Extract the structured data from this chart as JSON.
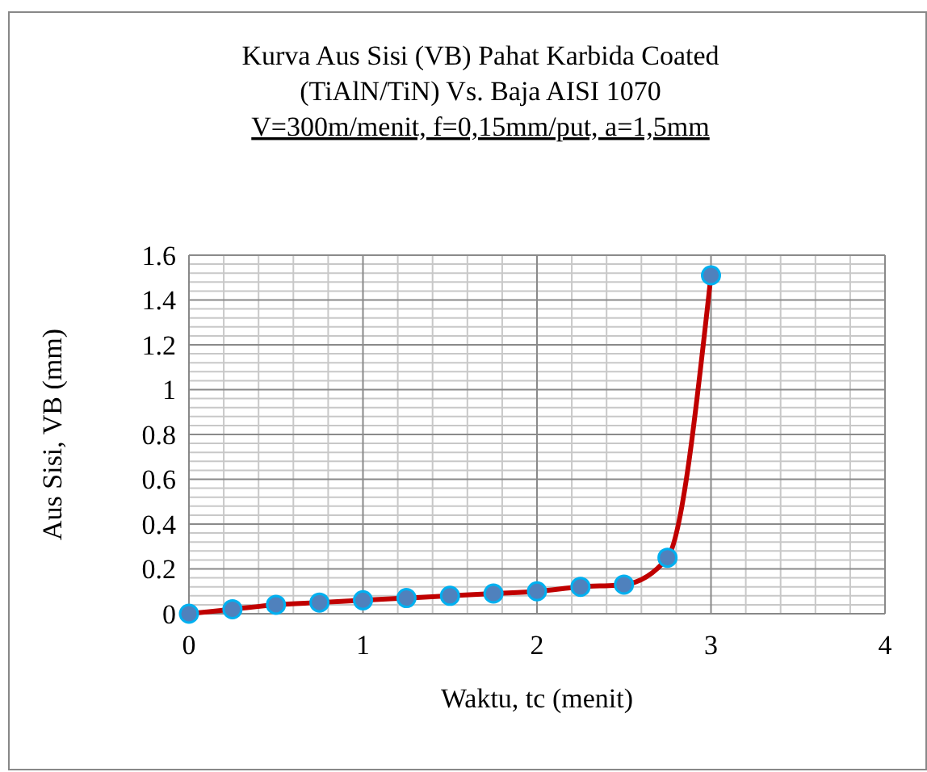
{
  "chart_data": {
    "type": "line",
    "title": "Kurva Aus Sisi (VB) Pahat Karbida Coated\n(TiAlN/TiN) Vs. Baja AISI 1070\nV=300m/menit, f=0,15mm/put, a=1,5mm",
    "xlabel": "Waktu, tc (menit)",
    "ylabel": "Aus  Sisi, VB (mm)",
    "x": [
      0,
      0.25,
      0.5,
      0.75,
      1,
      1.25,
      1.5,
      1.75,
      2,
      2.25,
      2.5,
      2.75,
      3
    ],
    "series": [
      {
        "color": "#c00000",
        "values": [
          0,
          0.02,
          0.04,
          0.05,
          0.06,
          0.07,
          0.08,
          0.09,
          0.1,
          0.12,
          0.13,
          0.25,
          1.51
        ]
      }
    ],
    "xlim": [
      0,
      4
    ],
    "xticks": [
      0,
      1,
      2,
      3,
      4
    ],
    "ylim": [
      0,
      1.6
    ],
    "yticks": [
      0,
      0.2,
      0.4,
      0.6,
      0.8,
      1,
      1.2,
      1.4,
      1.6
    ],
    "grid": true,
    "marker": "circle",
    "line_style": "solid"
  }
}
